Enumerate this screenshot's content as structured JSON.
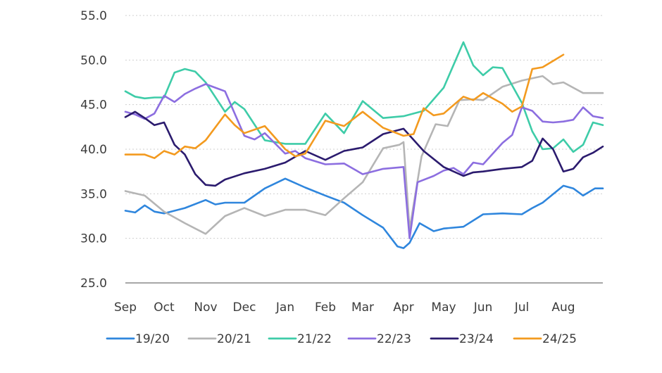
{
  "chart_data": {
    "type": "line",
    "ylim": [
      25,
      55
    ],
    "yticks": [
      "55.0",
      "50.0",
      "45.0",
      "40.0",
      "35.0",
      "30.0",
      "25.0"
    ],
    "categories": [
      "Sep",
      "Oct",
      "Nov",
      "Dec",
      "Jan",
      "Feb",
      "Mar",
      "Apr",
      "May",
      "Jun",
      "Jul",
      "Aug"
    ],
    "grid": "horizontal-dotted",
    "legend_position": "bottom",
    "series": [
      {
        "name": "19/20",
        "color": "#2f86dd",
        "x": [
          0,
          0.25,
          0.5,
          0.75,
          1,
          1.5,
          2,
          2.25,
          2.5,
          3,
          3.5,
          4,
          4.5,
          5,
          5.5,
          6,
          6.5,
          6.85,
          7,
          7.15,
          7.4,
          7.75,
          8,
          8.5,
          9,
          9.5,
          10,
          10.25,
          10.5,
          11,
          11.25,
          11.5,
          11.8,
          12
        ],
        "values": [
          33.1,
          32.9,
          33.7,
          33.0,
          32.8,
          33.4,
          34.3,
          33.8,
          34.0,
          34.0,
          35.6,
          36.7,
          35.7,
          34.8,
          34.0,
          32.6,
          31.2,
          29.1,
          28.9,
          29.5,
          31.7,
          30.8,
          31.1,
          31.3,
          32.7,
          32.8,
          32.7,
          33.4,
          34.0,
          35.9,
          35.6,
          34.8,
          35.6,
          35.6
        ]
      },
      {
        "name": "20/21",
        "color": "#b5b5b5",
        "x": [
          0,
          0.5,
          1,
          1.5,
          2,
          2.5,
          3,
          3.5,
          4,
          4.5,
          5,
          5.5,
          6,
          6.5,
          6.9,
          7,
          7.15,
          7.45,
          7.8,
          8.1,
          8.4,
          8.75,
          9,
          9.5,
          10,
          10.5,
          10.75,
          11,
          11.5,
          11.75,
          12
        ],
        "values": [
          35.3,
          34.8,
          33.0,
          31.7,
          30.5,
          32.5,
          33.4,
          32.5,
          33.2,
          33.2,
          32.6,
          34.5,
          36.3,
          40.1,
          40.5,
          40.8,
          31.0,
          39.2,
          42.8,
          42.6,
          45.5,
          45.6,
          45.5,
          47.0,
          47.7,
          48.2,
          47.3,
          47.5,
          46.3,
          46.3,
          46.3
        ]
      },
      {
        "name": "21/22",
        "color": "#3ecca8",
        "x": [
          0,
          0.25,
          0.5,
          0.75,
          1,
          1.25,
          1.5,
          1.75,
          2,
          2.5,
          2.75,
          3,
          3.5,
          4,
          4.5,
          5,
          5.5,
          6,
          6.5,
          7,
          7.5,
          8,
          8.5,
          8.75,
          9,
          9.25,
          9.5,
          10,
          10.25,
          10.5,
          10.75,
          11,
          11.25,
          11.5,
          11.75,
          12
        ],
        "values": [
          46.5,
          45.9,
          45.7,
          45.8,
          45.8,
          48.6,
          49.0,
          48.7,
          47.5,
          44.2,
          45.3,
          44.5,
          41.0,
          40.6,
          40.6,
          44.0,
          41.8,
          45.4,
          43.5,
          43.7,
          44.3,
          46.9,
          52.0,
          49.4,
          48.3,
          49.2,
          49.1,
          45.2,
          42.0,
          40.0,
          40.1,
          41.1,
          39.7,
          40.5,
          43.0,
          42.7
        ]
      },
      {
        "name": "22/23",
        "color": "#8c6ee0",
        "x": [
          0,
          0.25,
          0.5,
          0.75,
          1,
          1.25,
          1.5,
          1.75,
          2,
          2.5,
          3,
          3.25,
          3.5,
          4,
          4.25,
          4.5,
          5,
          5.5,
          6,
          6.5,
          7,
          7.15,
          7.35,
          7.75,
          8,
          8.25,
          8.5,
          8.75,
          9,
          9.5,
          9.75,
          10,
          10.25,
          10.5,
          10.75,
          11,
          11.25,
          11.5,
          11.75,
          12
        ],
        "values": [
          44.2,
          43.9,
          43.4,
          44.0,
          46.0,
          45.3,
          46.2,
          46.8,
          47.3,
          46.5,
          41.5,
          41.1,
          41.8,
          39.5,
          39.8,
          39.0,
          38.3,
          38.4,
          37.2,
          37.8,
          38.0,
          30.0,
          36.3,
          37.0,
          37.6,
          37.9,
          37.2,
          38.5,
          38.3,
          40.7,
          41.6,
          44.7,
          44.3,
          43.1,
          43.0,
          43.1,
          43.3,
          44.7,
          43.7,
          43.5
        ]
      },
      {
        "name": "23/24",
        "color": "#2b1b6e",
        "x": [
          0,
          0.25,
          0.5,
          0.75,
          1,
          1.25,
          1.5,
          1.75,
          2,
          2.25,
          2.5,
          3,
          3.5,
          4,
          4.5,
          5,
          5.5,
          6,
          6.5,
          7,
          7.5,
          8,
          8.5,
          8.75,
          9,
          9.5,
          10,
          10.25,
          10.5,
          10.75,
          11,
          11.25,
          11.5,
          11.75,
          12
        ],
        "values": [
          43.6,
          44.2,
          43.5,
          42.7,
          43.0,
          40.5,
          39.4,
          37.2,
          36.0,
          35.9,
          36.6,
          37.3,
          37.8,
          38.5,
          39.8,
          38.8,
          39.8,
          40.2,
          41.7,
          42.3,
          39.8,
          38.0,
          37.0,
          37.4,
          37.5,
          37.8,
          38.0,
          38.7,
          41.2,
          40.0,
          37.5,
          37.8,
          39.1,
          39.6,
          40.3
        ]
      },
      {
        "name": "24/25",
        "color": "#f39a1f",
        "x": [
          0,
          0.5,
          0.75,
          1,
          1.25,
          1.5,
          1.75,
          2,
          2.5,
          2.75,
          3,
          3.5,
          4,
          4.25,
          4.5,
          5,
          5.5,
          6,
          6.5,
          7,
          7.25,
          7.5,
          7.75,
          8,
          8.5,
          8.75,
          9,
          9.5,
          9.75,
          10,
          10.25,
          10.5,
          10.75,
          11
        ],
        "values": [
          39.4,
          39.4,
          39.0,
          39.8,
          39.4,
          40.3,
          40.1,
          41.0,
          43.9,
          42.7,
          41.8,
          42.6,
          40.0,
          39.2,
          39.5,
          43.2,
          42.6,
          44.2,
          42.4,
          41.5,
          41.7,
          44.6,
          43.8,
          44.0,
          45.9,
          45.5,
          46.3,
          45.1,
          44.2,
          44.8,
          49.0,
          49.2,
          49.9,
          50.6
        ]
      }
    ]
  }
}
